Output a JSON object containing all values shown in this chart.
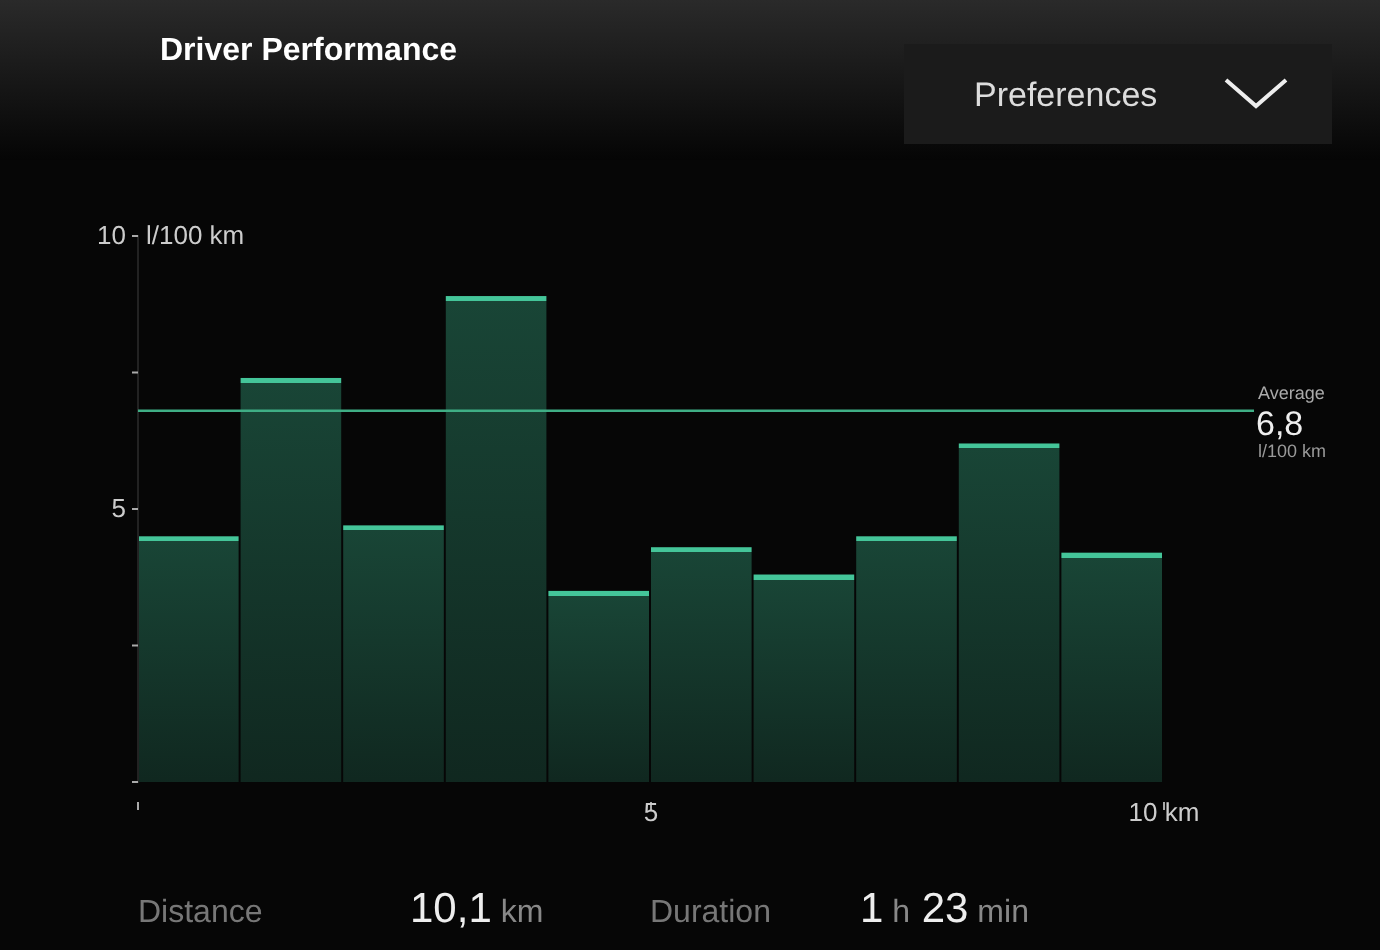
{
  "chart_data": {
    "type": "histogram",
    "title": "Driver Performance",
    "ylabel": "l/100 km",
    "bins": [
      0,
      1,
      2,
      3,
      4,
      5,
      6,
      7,
      8,
      9,
      10
    ],
    "values": [
      4.5,
      7.4,
      4.7,
      8.9,
      3.5,
      4.3,
      3.8,
      4.5,
      6.2,
      4.2
    ],
    "color": "#1f5a46",
    "xlim": [
      0,
      10
    ],
    "xticks": [
      {
        "value": 0,
        "label": null
      },
      5,
      {
        "value": 10,
        "label": "10 km"
      }
    ],
    "ylim": [
      0,
      10
    ],
    "yticks": [
      {
        "value": 0,
        "label": null
      },
      {
        "value": 2.5,
        "label": null
      },
      5,
      {
        "value": 7.5,
        "label": null
      },
      10
    ],
    "grid": false,
    "ref_lines": [
      {
        "axis": "y",
        "value": 6.8,
        "label": "Average",
        "color": "#3fae85"
      }
    ],
    "annotations": [
      "6,8",
      "l/100 km",
      "Preferences",
      "Distance",
      "10,1 km",
      "Duration",
      "1 h 23 min"
    ]
  }
}
